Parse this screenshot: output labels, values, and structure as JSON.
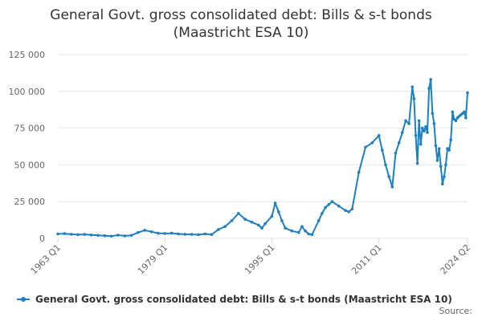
{
  "chart_data": {
    "type": "line",
    "title_line1": "General Govt. gross consolidated debt: Bills & s-t bonds",
    "title_line2": "(Maastricht ESA 10)",
    "xlabel": "",
    "ylabel": "",
    "ylim": [
      0,
      125000
    ],
    "y_ticks": [
      0,
      25000,
      50000,
      75000,
      100000,
      125000
    ],
    "y_tick_labels": [
      "0",
      "25 000",
      "50 000",
      "75 000",
      "100 000",
      "125 000"
    ],
    "x_range": [
      1963.0,
      2024.25
    ],
    "x_ticks": [
      1963.0,
      1979.0,
      1995.0,
      2011.0,
      2024.25
    ],
    "x_tick_labels": [
      "1963 Q1",
      "1979 Q1",
      "1995 Q1",
      "2011 Q1",
      "2024 Q2"
    ],
    "grid": true,
    "legend_position": "bottom",
    "color": "#1f7fc0",
    "series": [
      {
        "name": "General Govt. gross consolidated debt: Bills & s-t bonds (Maastricht ESA 10)",
        "x": [
          1963.0,
          1964.0,
          1965.0,
          1966.0,
          1967.0,
          1968.0,
          1969.0,
          1970.0,
          1971.0,
          1972.0,
          1973.0,
          1974.0,
          1975.0,
          1976.0,
          1977.0,
          1978.0,
          1979.0,
          1980.0,
          1981.0,
          1982.0,
          1983.0,
          1984.0,
          1985.0,
          1986.0,
          1987.0,
          1988.0,
          1989.0,
          1990.0,
          1991.0,
          1992.0,
          1993.0,
          1993.5,
          1994.0,
          1995.0,
          1995.5,
          1996.0,
          1996.5,
          1997.0,
          1998.0,
          1999.0,
          1999.5,
          2000.0,
          2000.5,
          2001.0,
          2002.0,
          2002.5,
          2003.0,
          2003.5,
          2004.0,
          2005.0,
          2006.0,
          2006.5,
          2007.0,
          2008.0,
          2009.0,
          2010.0,
          2011.0,
          2011.5,
          2012.0,
          2012.5,
          2013.0,
          2013.5,
          2014.0,
          2014.5,
          2015.0,
          2015.5,
          2016.0,
          2016.25,
          2016.5,
          2016.75,
          2017.0,
          2017.25,
          2017.5,
          2017.75,
          2018.0,
          2018.25,
          2018.5,
          2018.75,
          2019.0,
          2019.25,
          2019.5,
          2019.75,
          2020.0,
          2020.25,
          2020.5,
          2020.75,
          2021.0,
          2021.25,
          2021.5,
          2021.75,
          2022.0,
          2022.25,
          2022.5,
          2022.75,
          2023.0,
          2023.25,
          2023.5,
          2023.75,
          2024.0,
          2024.25
        ],
        "values": [
          3000,
          3200,
          2800,
          2500,
          2700,
          2300,
          2000,
          1800,
          1500,
          2200,
          1700,
          2000,
          4000,
          5500,
          4500,
          3500,
          3300,
          3500,
          3000,
          2800,
          2700,
          2500,
          3000,
          2600,
          6000,
          8000,
          12000,
          17000,
          13000,
          11000,
          9000,
          7000,
          10000,
          15000,
          24000,
          18000,
          12000,
          7000,
          5000,
          4000,
          8000,
          5000,
          3000,
          2500,
          12000,
          17000,
          21000,
          23000,
          25000,
          22000,
          19000,
          18000,
          20000,
          45000,
          62000,
          65000,
          70000,
          60000,
          50000,
          42000,
          35000,
          58000,
          65000,
          72000,
          80000,
          78000,
          103000,
          95000,
          70000,
          51000,
          80000,
          64000,
          75000,
          73000,
          76000,
          72000,
          102000,
          108000,
          85000,
          78000,
          63000,
          53000,
          61000,
          49000,
          37000,
          42000,
          50000,
          61000,
          60000,
          67000,
          86000,
          81000,
          80000,
          82000,
          83000,
          84000,
          85000,
          86000,
          82000,
          99000
        ]
      }
    ]
  },
  "legend": {
    "label": "General Govt. gross consolidated debt: Bills & s-t bonds (Maastricht ESA 10)"
  },
  "footer": {
    "source_label": "Source:"
  }
}
